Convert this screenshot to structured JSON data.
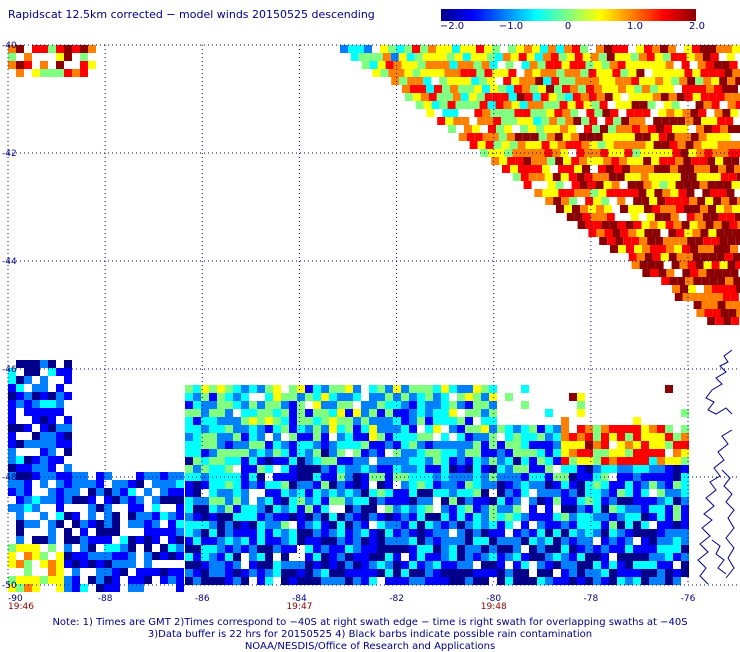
{
  "title": "Rapidscat 12.5km corrected − model winds 20150525 descending",
  "colorbar": {
    "ticks": [
      "−2.0",
      "−1.0",
      "0",
      "1.0",
      "2.0"
    ],
    "tick_values": [
      -2.0,
      -1.0,
      0,
      1.0,
      2.0
    ],
    "colors": [
      "#00008b",
      "#0000ff",
      "#0080ff",
      "#00ffff",
      "#80ff80",
      "#ffff00",
      "#ff8000",
      "#ff0000",
      "#8b0000"
    ]
  },
  "map": {
    "lat_labels": [
      "-40",
      "-42",
      "-44",
      "-46",
      "-48",
      "-50"
    ],
    "lon_labels": [
      "-90",
      "-88",
      "-86",
      "-84",
      "-82",
      "-80",
      "-78",
      "-76"
    ],
    "time_labels": [
      "19:46",
      "19:47",
      "19:48"
    ],
    "time_color": "#8b0000",
    "grid_color": "#000080",
    "coast_color": "#000080"
  },
  "notes": [
    "Note: 1) Times are GMT 2)Times correspond to −40S at right swath edge − time is right swath for overlapping swaths at −40S",
    "3)Data buffer is 22 hrs for 20150525 4) Black barbs indicate possible rain contamination",
    "NOAA/NESDIS/Office of Research and Applications"
  ]
}
